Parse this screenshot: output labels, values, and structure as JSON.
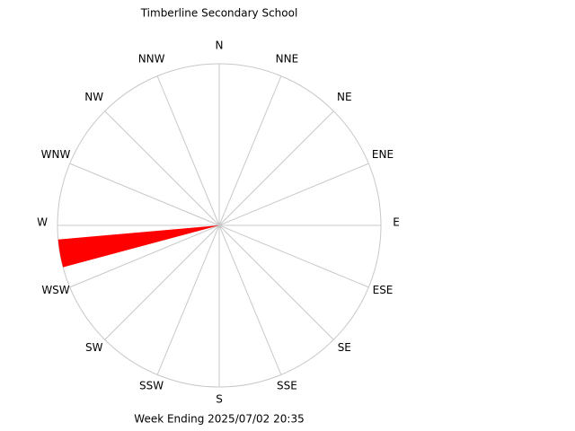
{
  "chart_data": {
    "type": "windrose",
    "title": "Timberline Secondary School",
    "footer": "Week Ending 2025/07/02 20:35",
    "direction_labels": [
      "N",
      "NNE",
      "NE",
      "ENE",
      "E",
      "ESE",
      "SE",
      "SSE",
      "S",
      "SSW",
      "SW",
      "WSW",
      "W",
      "WNW",
      "NW",
      "NNW"
    ],
    "directions": [
      260
    ],
    "values": [
      100
    ],
    "bin_width": 10,
    "rlim": [
      0,
      100
    ],
    "color": "#ff0000"
  }
}
